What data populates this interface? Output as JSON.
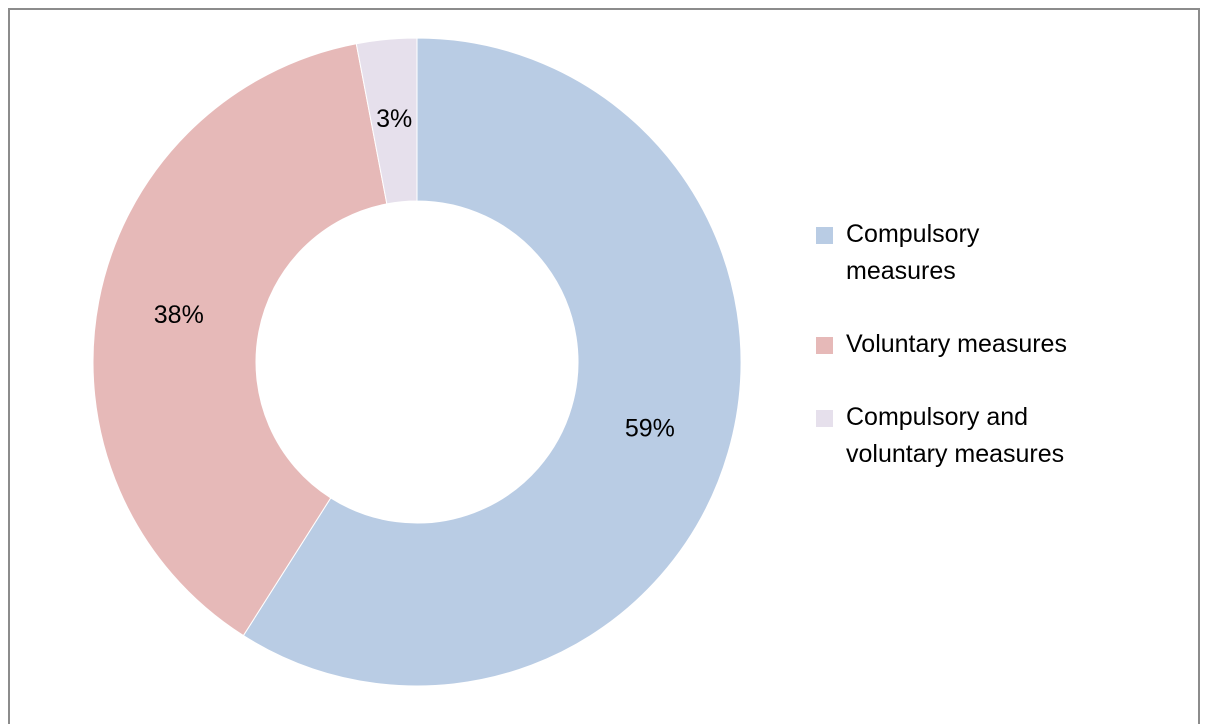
{
  "chart_data": {
    "type": "donut",
    "categories": [
      "Compulsory measures",
      "Voluntary measures",
      "Compulsory and voluntary measures"
    ],
    "values": [
      59,
      38,
      3
    ],
    "value_labels": [
      "59%",
      "38%",
      "3%"
    ],
    "colors": [
      "#b9cce4",
      "#e6b9b8",
      "#e6e0ec"
    ],
    "legend": "right"
  }
}
